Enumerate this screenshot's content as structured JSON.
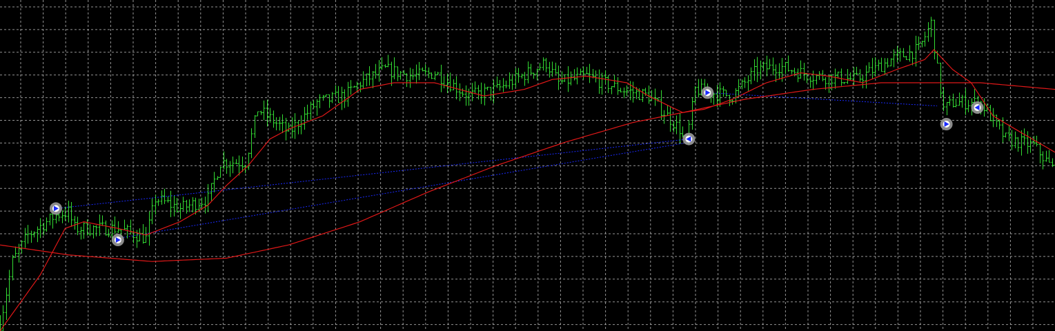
{
  "chart_data": {
    "type": "ohlc",
    "title": "",
    "xlabel": "",
    "ylabel": "",
    "grid": true,
    "ylim": [
      0,
      100
    ],
    "xlim": [
      0,
      340
    ],
    "colors": {
      "background": "#000000",
      "grid": "#c8c8c8",
      "bars": "#33dd33",
      "moving_average": "#e01818",
      "trade_line": "#1a2aff",
      "marker_ring": "#9a9a9a",
      "marker_arrow": "#1a2aff"
    },
    "price_path": [
      [
        0,
        2
      ],
      [
        4,
        21
      ],
      [
        9,
        29
      ],
      [
        18,
        35
      ],
      [
        22,
        36
      ],
      [
        24,
        31
      ],
      [
        38,
        31
      ],
      [
        47,
        28
      ],
      [
        50,
        40
      ],
      [
        58,
        37
      ],
      [
        67,
        40
      ],
      [
        71,
        51
      ],
      [
        79,
        51
      ],
      [
        83,
        67
      ],
      [
        93,
        60
      ],
      [
        102,
        69
      ],
      [
        111,
        71
      ],
      [
        116,
        75
      ],
      [
        124,
        79
      ],
      [
        133,
        77
      ],
      [
        140,
        78
      ],
      [
        151,
        71
      ],
      [
        160,
        73
      ],
      [
        176,
        81
      ],
      [
        180,
        75
      ],
      [
        189,
        77
      ],
      [
        200,
        73
      ],
      [
        209,
        71
      ],
      [
        219,
        61
      ],
      [
        221,
        56
      ],
      [
        224,
        73
      ],
      [
        229,
        72
      ],
      [
        236,
        71
      ],
      [
        244,
        79
      ],
      [
        251,
        80
      ],
      [
        262,
        77
      ],
      [
        276,
        76
      ],
      [
        287,
        82
      ],
      [
        296,
        85
      ],
      [
        300,
        93
      ],
      [
        302,
        79
      ],
      [
        304,
        67
      ],
      [
        307,
        69
      ],
      [
        316,
        69
      ],
      [
        324,
        58
      ],
      [
        333,
        56
      ],
      [
        340,
        48
      ]
    ],
    "series": [
      {
        "kind": "fast-ma",
        "points": [
          [
            0,
            0
          ],
          [
            13,
            17
          ],
          [
            21,
            31
          ],
          [
            27,
            33
          ],
          [
            38,
            31
          ],
          [
            47,
            29
          ],
          [
            58,
            33
          ],
          [
            67,
            38
          ],
          [
            73,
            44
          ],
          [
            80,
            50
          ],
          [
            87,
            58
          ],
          [
            93,
            61
          ],
          [
            104,
            65
          ],
          [
            116,
            73
          ],
          [
            127,
            75
          ],
          [
            140,
            75
          ],
          [
            156,
            71
          ],
          [
            169,
            73
          ],
          [
            178,
            76
          ],
          [
            189,
            77
          ],
          [
            202,
            75
          ],
          [
            209,
            71
          ],
          [
            220,
            66
          ],
          [
            227,
            67
          ],
          [
            236,
            70
          ],
          [
            247,
            75
          ],
          [
            258,
            78
          ],
          [
            267,
            77
          ],
          [
            278,
            75
          ],
          [
            289,
            79
          ],
          [
            298,
            82
          ],
          [
            301,
            85
          ],
          [
            307,
            79
          ],
          [
            313,
            75
          ],
          [
            320,
            65
          ],
          [
            329,
            60
          ],
          [
            340,
            54
          ]
        ]
      },
      {
        "kind": "slow-ma",
        "points": [
          [
            0,
            26
          ],
          [
            22,
            23
          ],
          [
            49,
            21
          ],
          [
            73,
            22
          ],
          [
            93,
            26
          ],
          [
            116,
            33
          ],
          [
            138,
            42
          ],
          [
            160,
            50
          ],
          [
            182,
            57
          ],
          [
            204,
            63
          ],
          [
            220,
            66
          ],
          [
            240,
            70
          ],
          [
            262,
            73
          ],
          [
            284,
            75
          ],
          [
            302,
            75
          ],
          [
            316,
            75
          ],
          [
            340,
            73
          ]
        ]
      }
    ],
    "trades": [
      {
        "open": [
          18,
          37
        ],
        "close": [
          222,
          58
        ],
        "open_dir": "right",
        "close_dir": "left"
      },
      {
        "open": [
          38,
          28
        ],
        "close": [
          222,
          57
        ],
        "open_dir": "right",
        "close_dir": "left"
      },
      {
        "open": [
          228,
          72
        ],
        "close": [
          302,
          68
        ],
        "open_dir": "right",
        "close_dir": "left"
      }
    ],
    "markers": [
      {
        "bar": 18,
        "level": 37,
        "direction": "right"
      },
      {
        "bar": 38,
        "level": 27.5,
        "direction": "right"
      },
      {
        "bar": 222,
        "level": 58,
        "direction": "left"
      },
      {
        "bar": 228,
        "level": 72,
        "direction": "right"
      },
      {
        "bar": 305,
        "level": 62.5,
        "direction": "right"
      },
      {
        "bar": 315,
        "level": 67.5,
        "direction": "left"
      }
    ]
  }
}
